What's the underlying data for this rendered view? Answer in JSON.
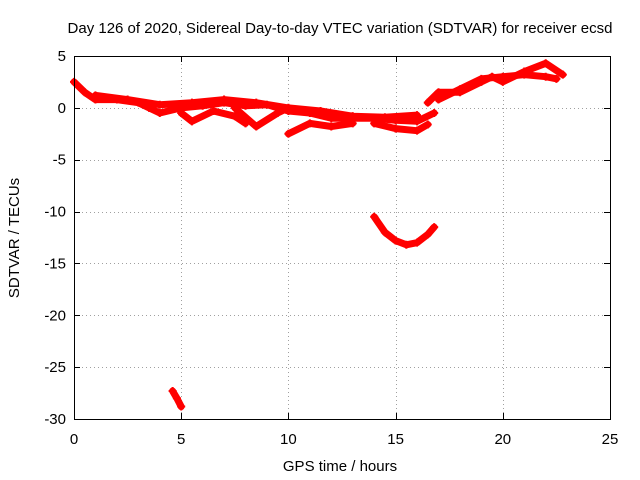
{
  "chart_data": {
    "type": "scatter",
    "title": "Day 126 of 2020, Sidereal Day-to-day VTEC variation (SDTVAR) for receiver ecsd",
    "xlabel": "GPS time / hours",
    "ylabel": "SDTVAR / TECUs",
    "xlim": [
      0,
      25
    ],
    "ylim": [
      -30,
      5
    ],
    "xticks": [
      0,
      5,
      10,
      15,
      20,
      25
    ],
    "yticks": [
      5,
      0,
      -5,
      -10,
      -15,
      -20,
      -25,
      -30
    ],
    "grid": true,
    "legend": "none",
    "marker": "plus",
    "colors": {
      "series": "#ff0000",
      "grid": "#a0a0a0",
      "axes": "#000000"
    },
    "series": [
      {
        "name": "arc-main-lower",
        "x": [
          0.0,
          0.5,
          1.0,
          2.0,
          3.0,
          3.5,
          4.0,
          5.0,
          6.0,
          7.0,
          8.0,
          9.0,
          10.0,
          11.0,
          12.0,
          13.0,
          14.0,
          15.0,
          16.0,
          16.8
        ],
        "y": [
          2.5,
          1.5,
          0.8,
          0.8,
          0.5,
          0.0,
          -0.5,
          0.0,
          0.2,
          0.5,
          0.2,
          0.3,
          -0.3,
          -0.5,
          -1.0,
          -1.0,
          -1.0,
          -1.2,
          -1.3,
          -0.5
        ]
      },
      {
        "name": "arc-main-upper",
        "x": [
          1.0,
          2.5,
          4.0,
          5.5,
          7.0,
          8.5,
          10.0,
          11.5,
          13.0,
          14.5,
          16.0
        ],
        "y": [
          1.2,
          0.8,
          0.3,
          0.5,
          0.8,
          0.5,
          0.0,
          -0.3,
          -0.8,
          -0.9,
          -0.7
        ]
      },
      {
        "name": "arc-dip-a",
        "x": [
          5.0,
          5.5,
          6.5,
          7.5,
          8.0
        ],
        "y": [
          -0.5,
          -1.3,
          -0.3,
          -0.8,
          -1.5
        ]
      },
      {
        "name": "arc-dip-b",
        "x": [
          7.5,
          8.5,
          9.5,
          10.0
        ],
        "y": [
          0.0,
          -1.8,
          -0.5,
          0.0
        ]
      },
      {
        "name": "arc-dip-c",
        "x": [
          10.0,
          11.0,
          12.0,
          13.0
        ],
        "y": [
          -2.5,
          -1.5,
          -1.8,
          -1.5
        ]
      },
      {
        "name": "arc-dip-d",
        "x": [
          14.0,
          15.0,
          16.0,
          16.5
        ],
        "y": [
          -1.5,
          -2.0,
          -2.2,
          -1.6
        ]
      },
      {
        "name": "arc-late-rise",
        "x": [
          16.5,
          17.0,
          18.0,
          19.0,
          19.5,
          20.0,
          21.0,
          22.0,
          22.8
        ],
        "y": [
          0.5,
          1.5,
          1.5,
          2.5,
          3.0,
          2.5,
          3.5,
          4.3,
          3.2
        ]
      },
      {
        "name": "arc-late-branch",
        "x": [
          17.0,
          18.0,
          19.0,
          20.0,
          21.0,
          22.0,
          22.5
        ],
        "y": [
          0.8,
          1.8,
          2.8,
          3.0,
          3.2,
          3.0,
          2.8
        ]
      },
      {
        "name": "arc-negative-bowl",
        "x": [
          14.0,
          14.5,
          15.0,
          15.5,
          16.0,
          16.5,
          16.8
        ],
        "y": [
          -10.5,
          -12.0,
          -12.8,
          -13.2,
          -13.0,
          -12.2,
          -11.5
        ]
      },
      {
        "name": "arc-deep",
        "x": [
          4.6,
          4.8,
          5.0
        ],
        "y": [
          -27.3,
          -28.0,
          -28.8
        ]
      }
    ]
  }
}
